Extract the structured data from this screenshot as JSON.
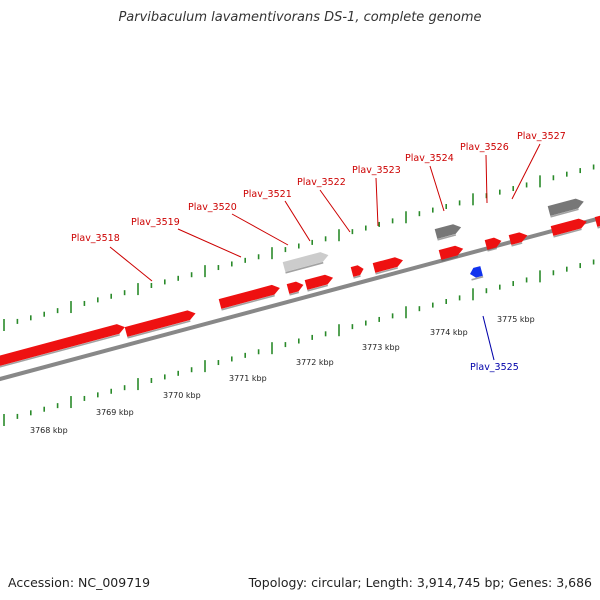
{
  "title": "Parvibaculum lavamentivorans DS-1, complete genome",
  "footer": {
    "accession": "Accession: NC_009719",
    "summary": "Topology: circular; Length: 3,914,745 bp; Genes: 3,686"
  },
  "colors": {
    "forward_gene": "#ee1111",
    "reverse_gene": "#1133ee",
    "other_gene_dark": "#777777",
    "other_gene_light": "#cccccc",
    "backbone": "#888888",
    "tick": "#2a8a2a",
    "label_forward": "#cc0000",
    "label_reverse": "#0000aa"
  },
  "gene_labels": [
    {
      "id": "Plav_3518",
      "strand": "forward"
    },
    {
      "id": "Plav_3519",
      "strand": "forward"
    },
    {
      "id": "Plav_3520",
      "strand": "forward"
    },
    {
      "id": "Plav_3521",
      "strand": "forward"
    },
    {
      "id": "Plav_3522",
      "strand": "forward"
    },
    {
      "id": "Plav_3523",
      "strand": "forward"
    },
    {
      "id": "Plav_3524",
      "strand": "forward"
    },
    {
      "id": "Plav_3526",
      "strand": "forward"
    },
    {
      "id": "Plav_3527",
      "strand": "forward"
    },
    {
      "id": "Plav_3525",
      "strand": "reverse"
    }
  ],
  "kbp_labels": [
    "3768 kbp",
    "3769 kbp",
    "3770 kbp",
    "3771 kbp",
    "3772 kbp",
    "3773 kbp",
    "3774 kbp",
    "3775 kbp"
  ]
}
